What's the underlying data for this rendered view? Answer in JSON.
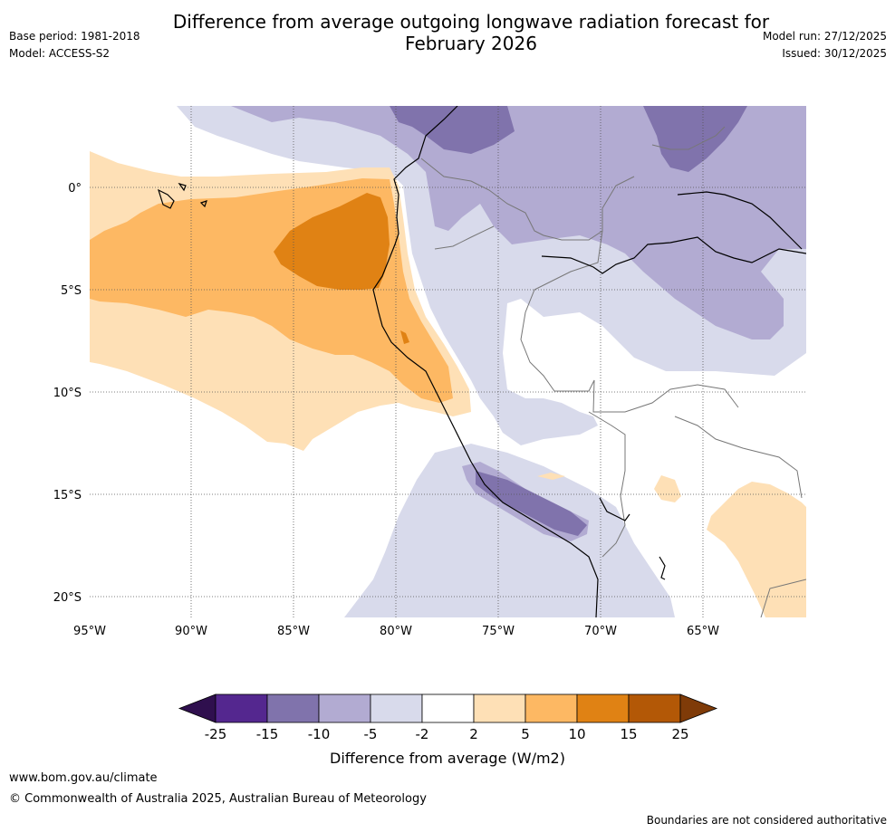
{
  "title": "Difference from average outgoing longwave radiation forecast for February 2026",
  "base_period": "Base period: 1981-2018",
  "model": "Model: ACCESS-S2",
  "model_run": "Model run: 27/12/2025",
  "issued": "Issued: 30/12/2025",
  "map": {
    "lat_labels": [
      "0°",
      "5°S",
      "10°S",
      "15°S",
      "20°S"
    ],
    "lon_labels": [
      "95°W",
      "90°W",
      "85°W",
      "80°W",
      "75°W",
      "70°W",
      "65°W"
    ]
  },
  "colorbar": {
    "title": "Difference from average (W/m2)",
    "ticks": [
      "-25",
      "-15",
      "-10",
      "-5",
      "-2",
      "2",
      "5",
      "10",
      "15",
      "25"
    ],
    "colors": {
      "below_min": "#2f0f4e",
      "c1": "#54278f",
      "c2": "#8073ac",
      "c3": "#b2abd2",
      "c4": "#d8daeb",
      "c5": "#ffffff",
      "c6": "#fee0b6",
      "c7": "#fdb863",
      "c8": "#e08214",
      "c9": "#b35806",
      "above_max": "#7f3b08"
    }
  },
  "footer": {
    "url": "www.bom.gov.au/climate",
    "copyright": "© Commonwealth of Australia 2025, Australian Bureau of Meteorology",
    "note": "Boundaries are not considered authoritative"
  }
}
